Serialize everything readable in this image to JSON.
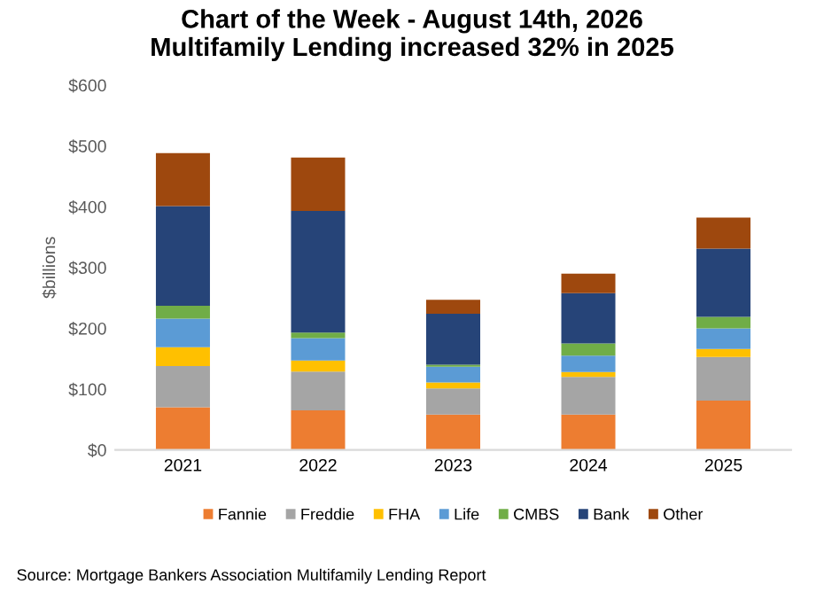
{
  "chart_data": {
    "type": "bar",
    "stacked": true,
    "title": "Chart of the Week - August 14th, 2026\nMultifamily Lending increased 32% in 2025",
    "ylabel": "$billions",
    "categories": [
      "2021",
      "2022",
      "2023",
      "2024",
      "2025"
    ],
    "series": [
      {
        "name": "Fannie",
        "color": "#ed7d31",
        "values": [
          70,
          65,
          58,
          58,
          81
        ]
      },
      {
        "name": "Freddie",
        "color": "#a5a5a5",
        "values": [
          68,
          64,
          43,
          62,
          72
        ]
      },
      {
        "name": "FHA",
        "color": "#ffc000",
        "values": [
          31,
          18,
          10,
          8,
          13
        ]
      },
      {
        "name": "Life",
        "color": "#5b9bd5",
        "values": [
          47,
          37,
          26,
          27,
          34
        ]
      },
      {
        "name": "CMBS",
        "color": "#70ad47",
        "values": [
          21,
          9,
          3,
          20,
          19
        ]
      },
      {
        "name": "Bank",
        "color": "#264478",
        "values": [
          164,
          200,
          84,
          83,
          112
        ]
      },
      {
        "name": "Other",
        "color": "#9e480e",
        "values": [
          87,
          88,
          23,
          32,
          51
        ]
      }
    ],
    "ylim": [
      0,
      600
    ],
    "yticks": [
      {
        "value": 0,
        "label": "$0"
      },
      {
        "value": 100,
        "label": "$100"
      },
      {
        "value": 200,
        "label": "$200"
      },
      {
        "value": 300,
        "label": "$300"
      },
      {
        "value": 400,
        "label": "$400"
      },
      {
        "value": 500,
        "label": "$500"
      },
      {
        "value": 600,
        "label": "$600"
      }
    ],
    "grid": false,
    "legend": "bottom",
    "annotations": [
      "Source: Mortgage Bankers Association Multifamily Lending Report"
    ]
  }
}
